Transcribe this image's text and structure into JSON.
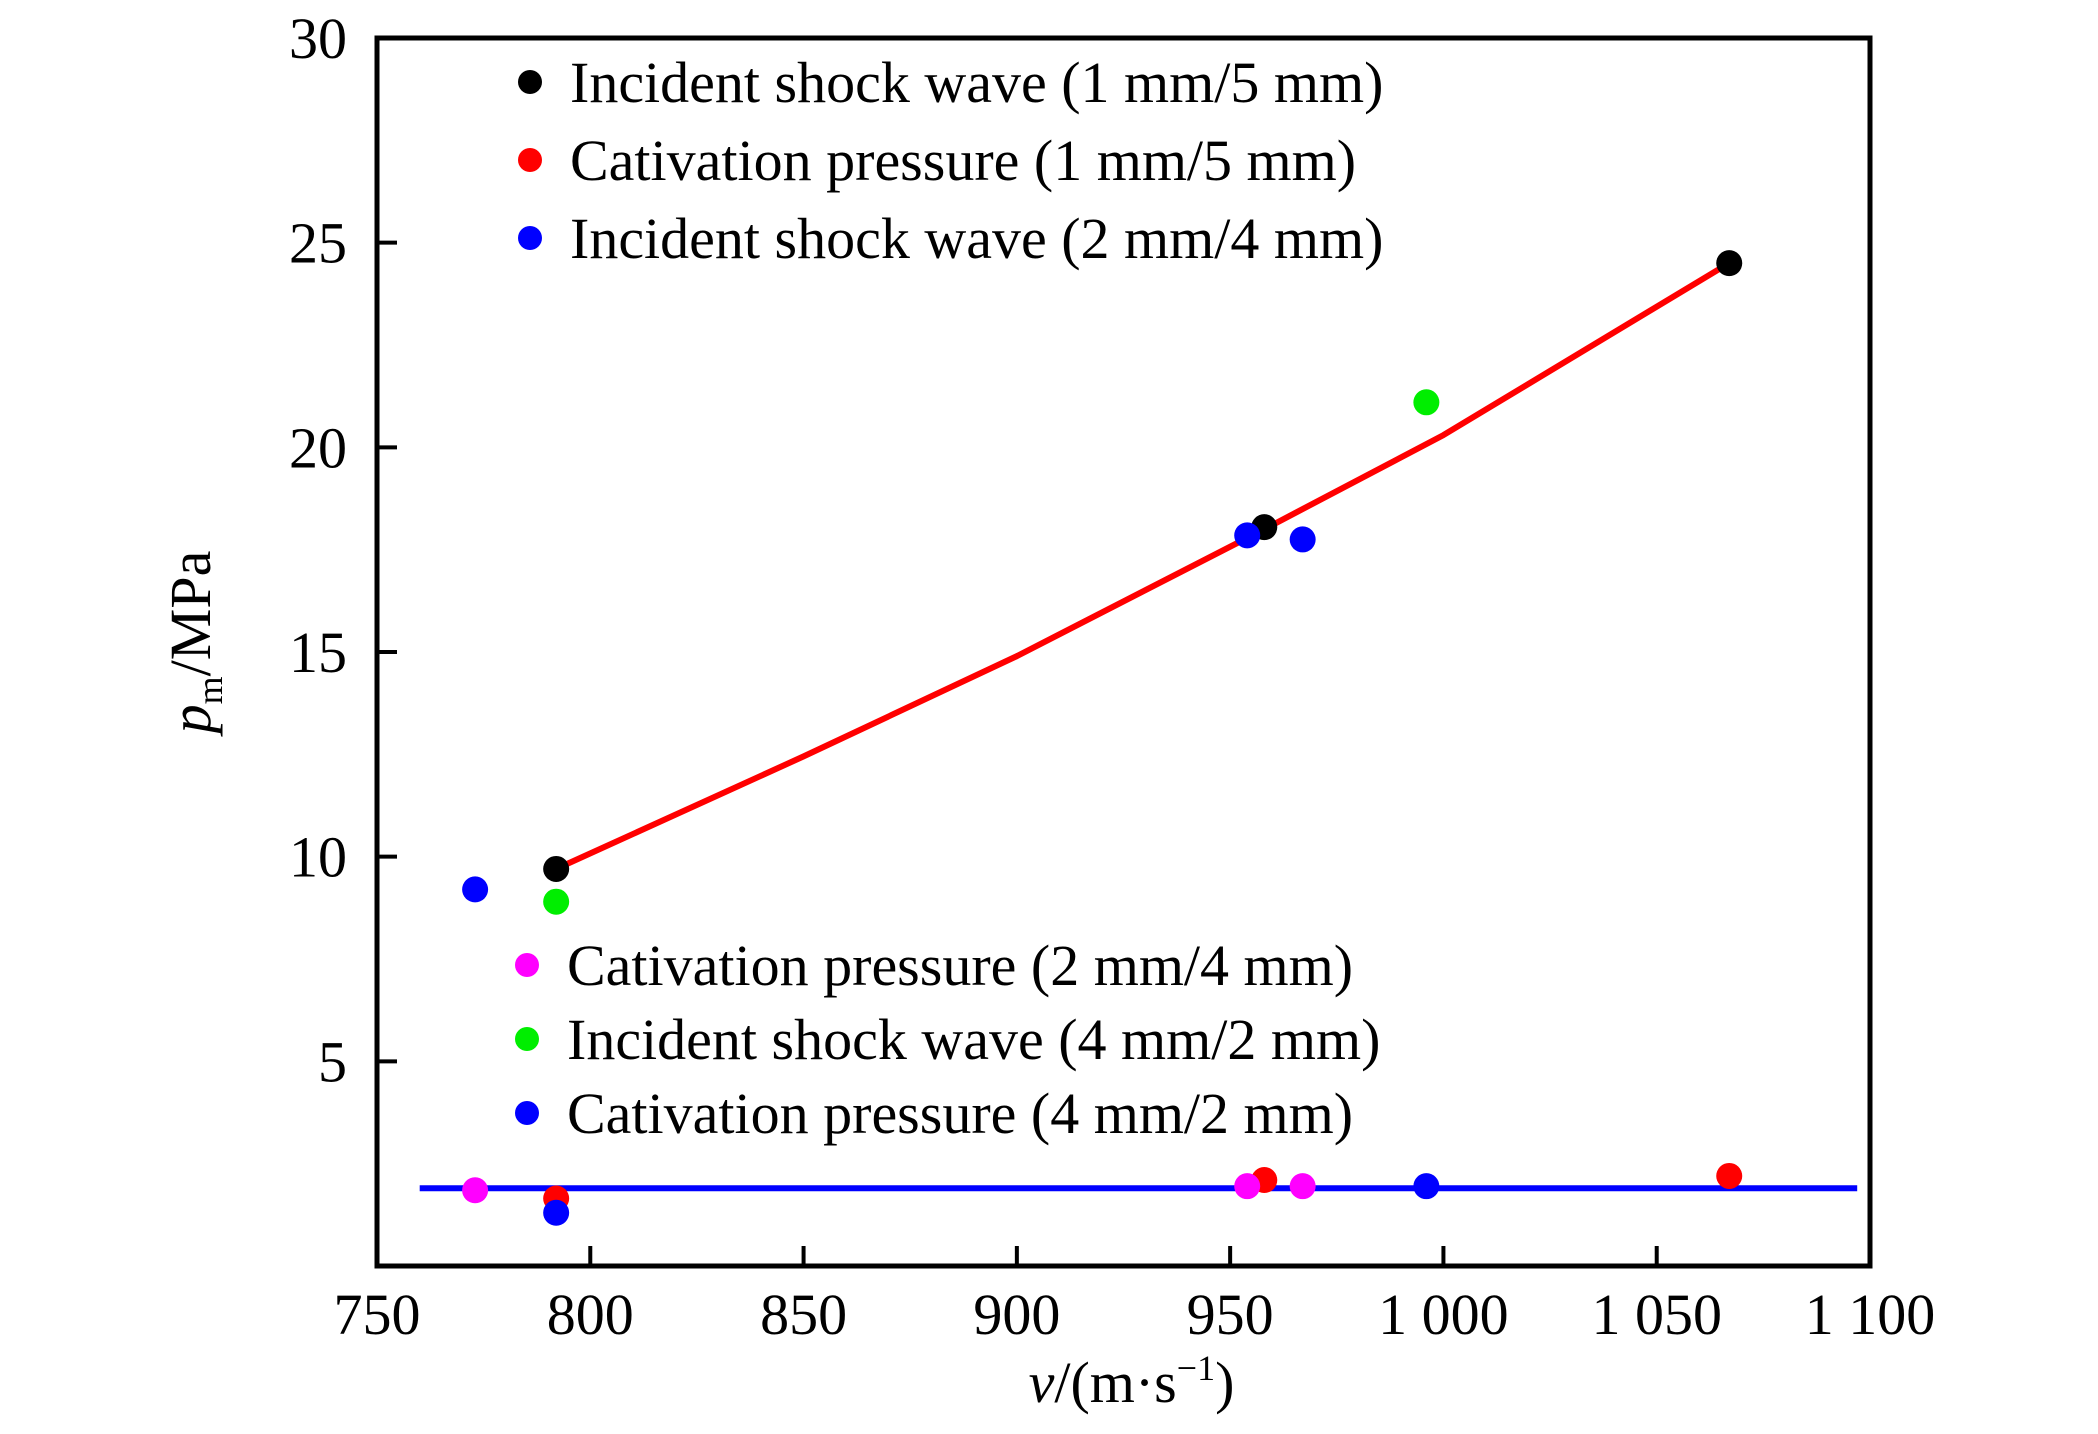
{
  "chart_data": {
    "type": "scatter",
    "xlabel": {
      "italic": "v",
      "rest": "/(m·s",
      "sup": "−1",
      "close": ")"
    },
    "ylabel": {
      "italic": "p",
      "sub": "m",
      "rest": "/MPa"
    },
    "xlim": [
      750,
      1100
    ],
    "ylim": [
      0,
      30
    ],
    "x_ticks": [
      {
        "value": 750,
        "label": "750"
      },
      {
        "value": 800,
        "label": "800"
      },
      {
        "value": 850,
        "label": "850"
      },
      {
        "value": 900,
        "label": "900"
      },
      {
        "value": 950,
        "label": "950"
      },
      {
        "value": 1000,
        "label": "1 000"
      },
      {
        "value": 1050,
        "label": "1 050"
      },
      {
        "value": 1100,
        "label": "1 100"
      }
    ],
    "y_ticks": [
      {
        "value": 5,
        "label": "5"
      },
      {
        "value": 10,
        "label": "10"
      },
      {
        "value": 15,
        "label": "15"
      },
      {
        "value": 20,
        "label": "20"
      },
      {
        "value": 25,
        "label": "25"
      },
      {
        "value": 30,
        "label": "30"
      }
    ],
    "grid": false,
    "legend_positions": [
      "top-left",
      "lower-left"
    ],
    "series": [
      {
        "name": "Incident shock wave (1 mm/5 mm)",
        "color": "#000000",
        "legend_group": 0,
        "points": [
          [
            792,
            9.7
          ],
          [
            958,
            18.05
          ],
          [
            1067,
            24.5
          ]
        ]
      },
      {
        "name": "Cativation pressure (1 mm/5 mm)",
        "color": "#ff0000",
        "legend_group": 0,
        "points": [
          [
            792,
            1.65
          ],
          [
            958,
            2.1
          ],
          [
            1067,
            2.2
          ]
        ]
      },
      {
        "name": "Incident shock wave (2 mm/4 mm)",
        "color": "#0000ff",
        "legend_group": 0,
        "points": [
          [
            773,
            9.2
          ],
          [
            954,
            17.85
          ],
          [
            967,
            17.75
          ]
        ]
      },
      {
        "name": "Cativation pressure (2 mm/4 mm)",
        "color": "#ff00ff",
        "legend_group": 1,
        "points": [
          [
            773,
            1.85
          ],
          [
            954,
            1.95
          ],
          [
            967,
            1.95
          ]
        ]
      },
      {
        "name": "Incident shock wave (4 mm/2 mm)",
        "color": "#00ee00",
        "legend_group": 1,
        "points": [
          [
            792,
            8.9
          ],
          [
            996,
            21.1
          ]
        ]
      },
      {
        "name": "Cativation pressure (4 mm/2 mm)",
        "color": "#0000ff",
        "legend_group": 1,
        "points": [
          [
            792,
            1.3
          ],
          [
            996,
            1.95
          ]
        ]
      }
    ],
    "fit_lines": [
      {
        "color": "#ff0000",
        "points": [
          [
            792,
            9.7
          ],
          [
            850,
            12.45
          ],
          [
            900,
            14.9
          ],
          [
            958,
            18.0
          ],
          [
            1000,
            20.3
          ],
          [
            1067,
            24.5
          ]
        ]
      },
      {
        "color": "#0000ff",
        "points": [
          [
            760,
            1.9
          ],
          [
            1097,
            1.9
          ]
        ]
      }
    ]
  }
}
